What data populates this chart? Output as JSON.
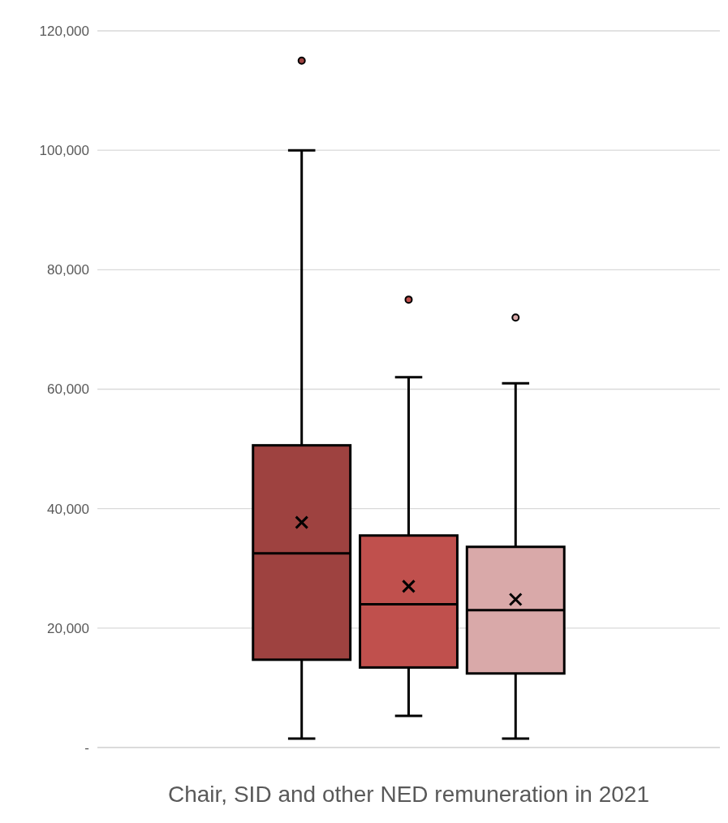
{
  "chart_data": {
    "type": "box",
    "title": "Chair, SID and other NED remuneration in 2021",
    "categories": [
      null
    ],
    "series": [
      {
        "color": "#9e4240",
        "boxes": [
          {
            "low": 1500,
            "q1": 14700,
            "median": 32500,
            "q3": 50600,
            "high": 100000,
            "mean": 37700,
            "outliers": [
              115000
            ]
          }
        ]
      },
      {
        "color": "#c0504d",
        "boxes": [
          {
            "low": 5300,
            "q1": 13400,
            "median": 24000,
            "q3": 35500,
            "high": 62000,
            "mean": 27000,
            "outliers": [
              75000
            ]
          }
        ]
      },
      {
        "color": "#d9a9a9",
        "boxes": [
          {
            "low": 1500,
            "q1": 12400,
            "median": 23000,
            "q3": 33600,
            "high": 61000,
            "mean": 24800,
            "outliers": [
              72000
            ]
          }
        ]
      }
    ],
    "ylim": [
      0,
      120000
    ],
    "yticks": [
      {
        "value": 0,
        "label": "-"
      },
      {
        "value": 20000,
        "label": "20,000"
      },
      {
        "value": 40000,
        "label": "40,000"
      },
      {
        "value": 60000,
        "label": "60,000"
      },
      {
        "value": 80000,
        "label": "80,000"
      },
      {
        "value": 100000,
        "label": "100,000"
      },
      {
        "value": 120000,
        "label": "120,000"
      }
    ],
    "grid": "y"
  }
}
